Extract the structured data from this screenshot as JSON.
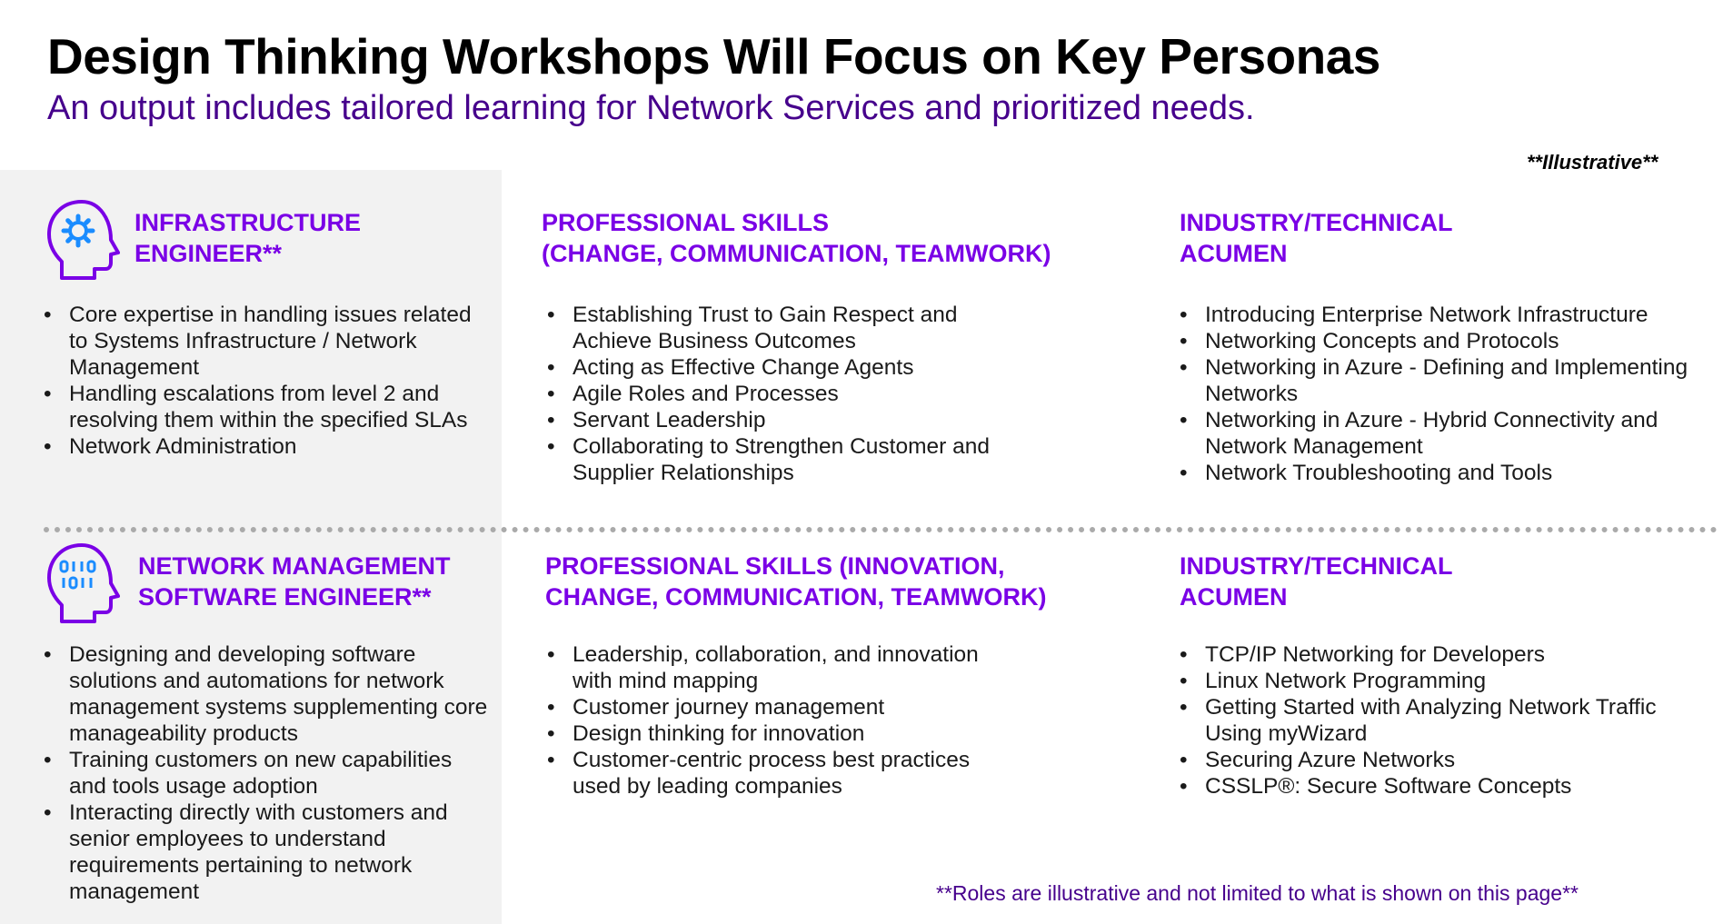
{
  "header": {
    "title": "Design Thinking Workshops Will Focus on Key Personas",
    "subtitle": "An output includes tailored learning for Network Services and prioritized needs.",
    "tag": "**Illustrative**"
  },
  "rows": [
    {
      "persona": {
        "icon": "head-gear-icon",
        "title_line1": "INFRASTRUCTURE",
        "title_line2": "ENGINEER**",
        "items": [
          "Core expertise in handling issues related to Systems Infrastructure / Network Management",
          "Handling escalations from level 2 and resolving them within the specified SLAs",
          "Network Administration"
        ]
      },
      "skills": {
        "title_line1": "PROFESSIONAL SKILLS",
        "title_line2": "(CHANGE, COMMUNICATION, TEAMWORK)",
        "items": [
          "Establishing Trust to Gain Respect and Achieve Business Outcomes",
          "Acting as Effective Change Agents",
          "Agile Roles and Processes",
          "Servant Leadership",
          "Collaborating to Strengthen Customer and Supplier Relationships"
        ]
      },
      "acumen": {
        "title_line1": "INDUSTRY/TECHNICAL",
        "title_line2": "ACUMEN",
        "items": [
          "Introducing Enterprise Network Infrastructure",
          "Networking Concepts and Protocols",
          "Networking in Azure - Defining and Implementing Networks",
          "Networking in Azure - Hybrid Connectivity and Network Management",
          "Network Troubleshooting and Tools"
        ]
      }
    },
    {
      "persona": {
        "icon": "head-binary-icon",
        "title_line1": "NETWORK MANAGEMENT",
        "title_line2": "SOFTWARE ENGINEER**",
        "items": [
          "Designing and developing software solutions and automations for network management systems supplementing core manageability products",
          "Training customers on new capabilities and tools usage adoption",
          "Interacting directly with customers and senior employees to understand requirements pertaining to network management"
        ]
      },
      "skills": {
        "title_line1": "PROFESSIONAL SKILLS (INNOVATION,",
        "title_line2": "CHANGE, COMMUNICATION, TEAMWORK)",
        "items": [
          "Leadership, collaboration, and innovation with mind mapping",
          "Customer journey management",
          "Design thinking for innovation",
          "Customer-centric process best practices used by leading companies"
        ]
      },
      "acumen": {
        "title_line1": "INDUSTRY/TECHNICAL",
        "title_line2": "ACUMEN",
        "items": [
          "TCP/IP Networking for Developers",
          "Linux Network Programming",
          "Getting Started with Analyzing Network Traffic Using myWizard",
          "Securing Azure Networks",
          "CSSLP®: Secure Software Concepts"
        ]
      }
    }
  ],
  "footnote": "**Roles are illustrative and not limited to what is shown on this page**",
  "colors": {
    "accent": "#7a00e6",
    "dark_purple": "#46008c",
    "panel_gray": "#f2f2f2"
  }
}
